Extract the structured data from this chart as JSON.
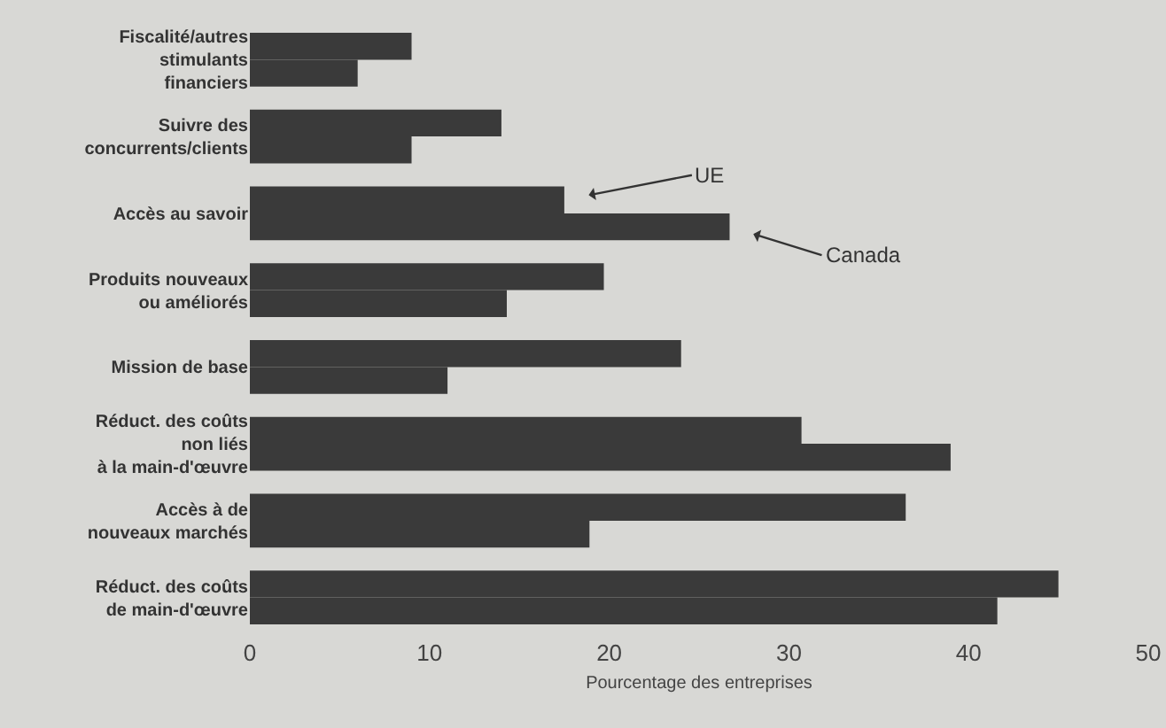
{
  "chart_data": {
    "type": "bar",
    "orientation": "horizontal",
    "xlabel": "Pourcentage des entreprises",
    "categories": [
      "Fiscalité/autres\nstimulants\nfinanciers",
      "Suivre des\nconcurrents/clients",
      "Accès au savoir",
      "Produits nouveaux\nou améliorés",
      "Mission de base",
      "Réduct. des coûts\nnon liés\nà la main-d'œuvre",
      "Accès à de\nnouveaux marchés",
      "Réduct. des coûts\nde main-d'œuvre"
    ],
    "series": [
      {
        "name": "UE",
        "color": "#3a3a3a",
        "values": [
          9,
          14,
          17.5,
          19.7,
          24,
          30.7,
          36.5,
          45
        ]
      },
      {
        "name": "Canada",
        "color": "#3a3a3a",
        "values": [
          6,
          9,
          26.7,
          14.3,
          11,
          39,
          18.9,
          41.6
        ]
      }
    ],
    "xlim": [
      0,
      50
    ],
    "xticks": [
      0,
      10,
      20,
      30,
      40,
      50
    ],
    "grid": false,
    "legend": "right"
  }
}
